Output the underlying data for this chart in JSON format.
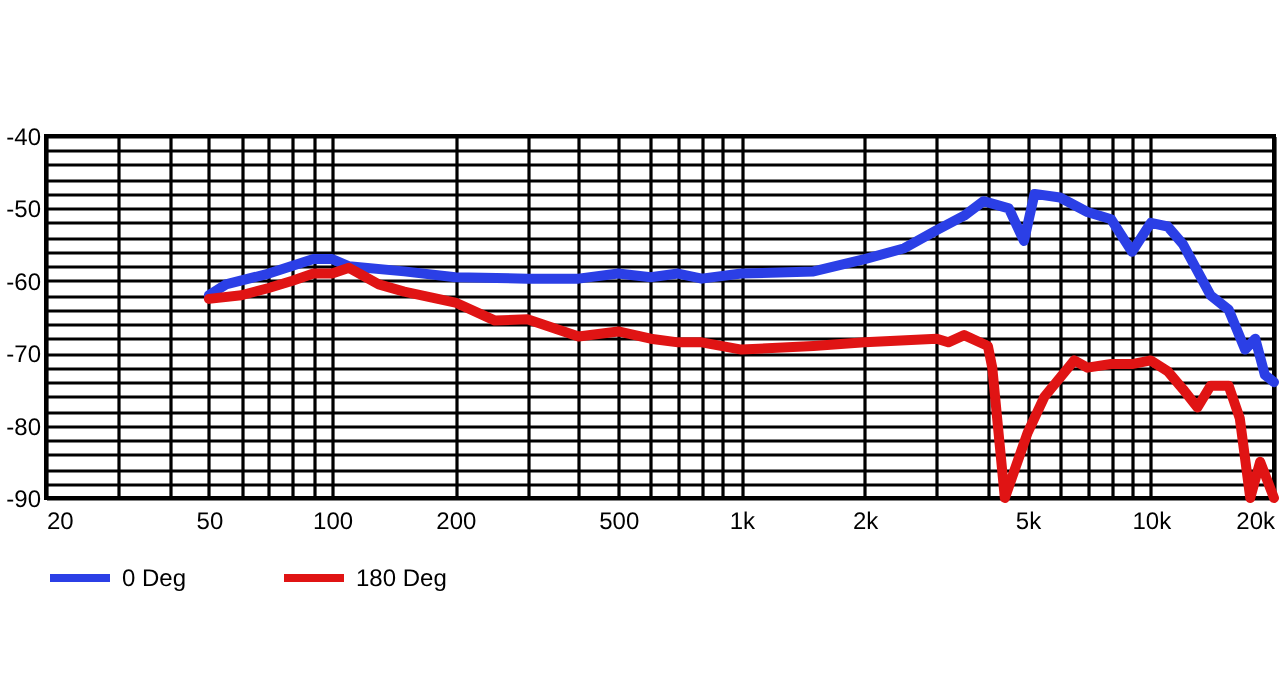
{
  "chart_data": {
    "type": "line",
    "log": "x",
    "grid": true,
    "legend": "bottom",
    "line_style": "solid",
    "marker": "none",
    "xlim": [
      20,
      20000
    ],
    "ylim": [
      -90,
      -40
    ],
    "xticks": [
      20,
      {
        "value": 30,
        "label": null
      },
      {
        "value": 40,
        "label": null
      },
      50,
      {
        "value": 60,
        "label": null
      },
      {
        "value": 70,
        "label": null
      },
      {
        "value": 80,
        "label": null
      },
      {
        "value": 90,
        "label": null
      },
      100,
      200,
      {
        "value": 300,
        "label": null
      },
      {
        "value": 400,
        "label": null
      },
      500,
      {
        "value": 600,
        "label": null
      },
      {
        "value": 700,
        "label": null
      },
      {
        "value": 800,
        "label": null
      },
      {
        "value": 900,
        "label": null
      },
      {
        "value": 1000,
        "label": "1k"
      },
      {
        "value": 2000,
        "label": "2k"
      },
      {
        "value": 3000,
        "label": null
      },
      {
        "value": 4000,
        "label": null
      },
      {
        "value": 5000,
        "label": "5k"
      },
      {
        "value": 6000,
        "label": null
      },
      {
        "value": 7000,
        "label": null
      },
      {
        "value": 8000,
        "label": null
      },
      {
        "value": 9000,
        "label": null
      },
      {
        "value": 10000,
        "label": "10k"
      },
      {
        "value": 20000,
        "label": "20k"
      }
    ],
    "yticks": [
      -40,
      {
        "value": -42,
        "label": null
      },
      {
        "value": -44,
        "label": null
      },
      {
        "value": -46,
        "label": null
      },
      {
        "value": -48,
        "label": null
      },
      -50,
      {
        "value": -52,
        "label": null
      },
      {
        "value": -54,
        "label": null
      },
      {
        "value": -56,
        "label": null
      },
      {
        "value": -58,
        "label": null
      },
      -60,
      {
        "value": -62,
        "label": null
      },
      {
        "value": -64,
        "label": null
      },
      {
        "value": -66,
        "label": null
      },
      {
        "value": -68,
        "label": null
      },
      -70,
      {
        "value": -72,
        "label": null
      },
      {
        "value": -74,
        "label": null
      },
      {
        "value": -76,
        "label": null
      },
      {
        "value": -78,
        "label": null
      },
      -80,
      {
        "value": -82,
        "label": null
      },
      {
        "value": -84,
        "label": null
      },
      {
        "value": -86,
        "label": null
      },
      {
        "value": -88,
        "label": null
      },
      -90
    ],
    "series": [
      {
        "name": "0 Deg",
        "color": "#2b3fe6",
        "x": [
          50,
          55,
          70,
          90,
          100,
          110,
          150,
          200,
          300,
          400,
          500,
          600,
          700,
          800,
          1000,
          1500,
          2000,
          2500,
          3000,
          3500,
          3900,
          4500,
          4900,
          5200,
          6000,
          7000,
          8000,
          9000,
          10000,
          11000,
          12000,
          14000,
          15500,
          17000,
          18000,
          19000,
          20000
        ],
        "values": [
          -62,
          -60.5,
          -59,
          -57,
          -57,
          -58,
          -58.7,
          -59.5,
          -59.7,
          -59.7,
          -59,
          -59.5,
          -59,
          -59.7,
          -59,
          -58.7,
          -57,
          -55.5,
          -53,
          -51,
          -49,
          -50,
          -54.5,
          -48,
          -48.5,
          -50.5,
          -51.5,
          -56,
          -52,
          -52.5,
          -55,
          -62,
          -64,
          -69.5,
          -68,
          -73,
          -74
        ]
      },
      {
        "name": "180 Deg",
        "color": "#e01414",
        "x": [
          50,
          60,
          70,
          80,
          90,
          100,
          110,
          130,
          150,
          200,
          250,
          300,
          400,
          500,
          600,
          700,
          800,
          1000,
          1500,
          2000,
          3000,
          3200,
          3500,
          4000,
          4100,
          4400,
          5000,
          5500,
          6500,
          7000,
          8000,
          9000,
          10000,
          11000,
          12000,
          13000,
          14000,
          15500,
          16500,
          17500,
          18500,
          20000
        ],
        "values": [
          -62.5,
          -62,
          -61,
          -60,
          -59,
          -59,
          -58.2,
          -60.5,
          -61.5,
          -63,
          -65.5,
          -65.3,
          -67.7,
          -67,
          -68,
          -68.5,
          -68.5,
          -69.5,
          -69,
          -68.5,
          -68,
          -68.5,
          -67.5,
          -69,
          -72,
          -90,
          -81,
          -76,
          -71,
          -72,
          -71.5,
          -71.5,
          -71,
          -72.5,
          -75,
          -77.5,
          -74.5,
          -74.5,
          -79,
          -90,
          -85,
          -90
        ]
      }
    ]
  }
}
